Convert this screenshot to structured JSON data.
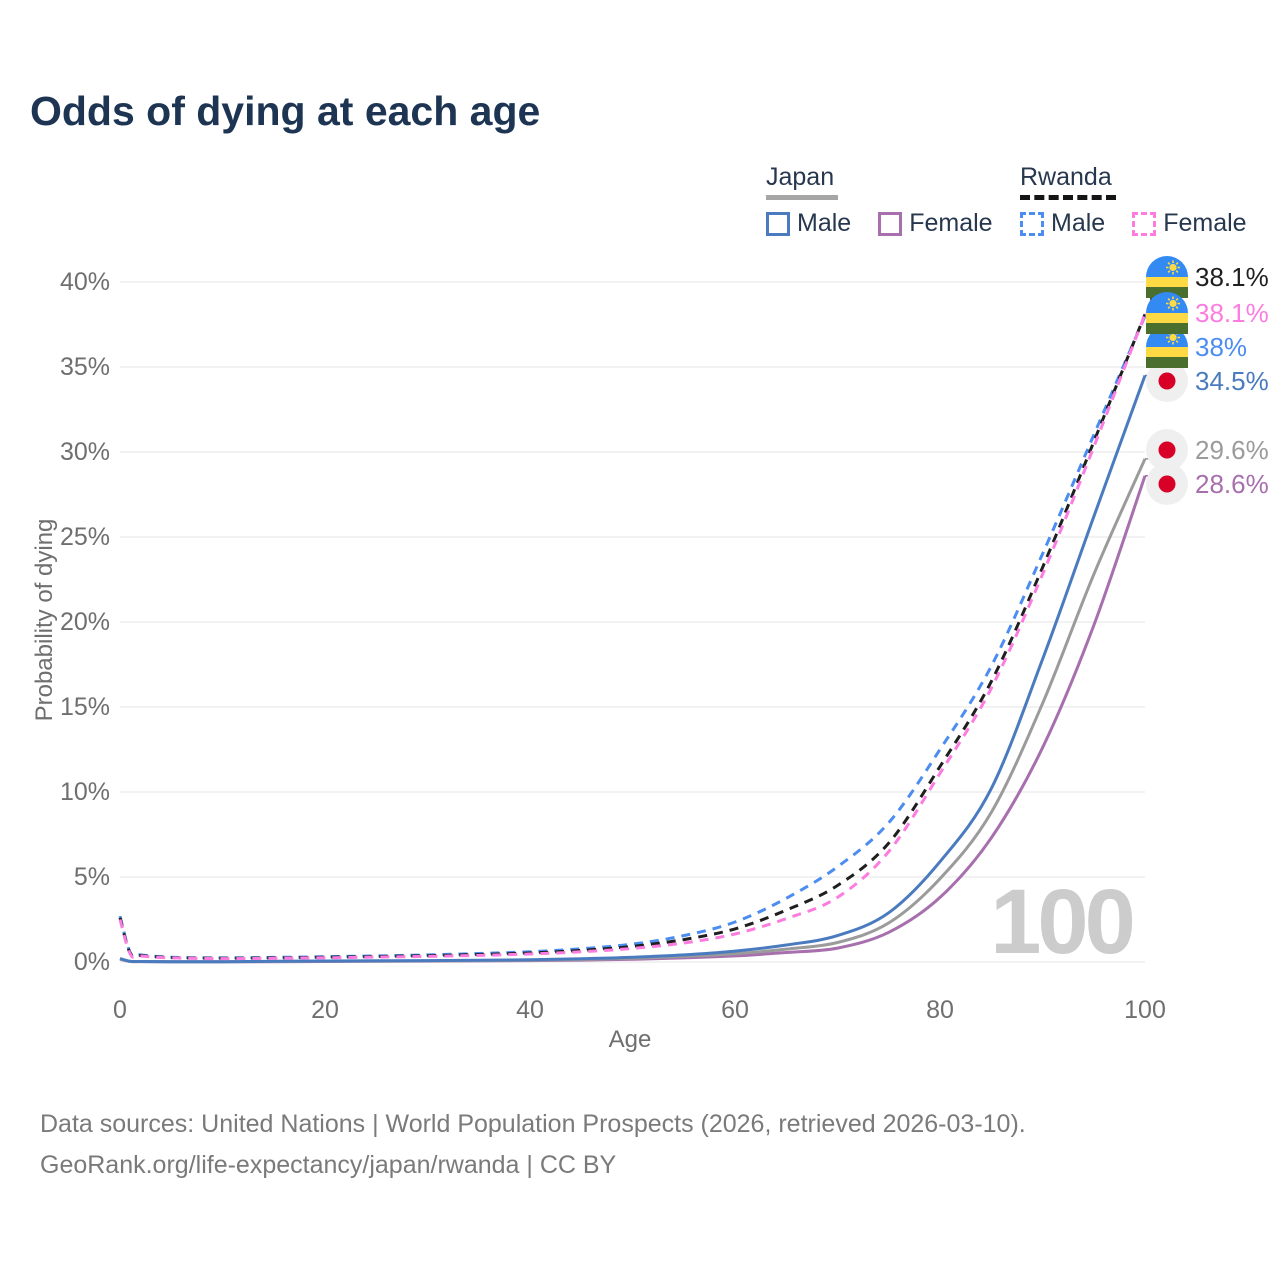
{
  "title": "Odds of dying at each age",
  "legend": {
    "groups": [
      {
        "country": "Japan",
        "line_style": "solid",
        "underline_color": "#a6a6a6",
        "items": [
          {
            "label": "Male",
            "color": "#4a7bbf"
          },
          {
            "label": "Female",
            "color": "#a76fad"
          }
        ]
      },
      {
        "country": "Rwanda",
        "line_style": "dashed",
        "underline_color": "#151515",
        "items": [
          {
            "label": "Male",
            "color": "#4b8df0"
          },
          {
            "label": "Female",
            "color": "#fc7ce0"
          }
        ]
      }
    ]
  },
  "axes": {
    "x": {
      "label": "Age",
      "ticks": [
        "0",
        "20",
        "40",
        "60",
        "80",
        "100"
      ],
      "tick_values": [
        0,
        20,
        40,
        60,
        80,
        100
      ]
    },
    "y": {
      "label": "Probability of dying",
      "ticks": [
        "0%",
        "5%",
        "10%",
        "15%",
        "20%",
        "25%",
        "30%",
        "35%",
        "40%"
      ],
      "tick_values": [
        0,
        5,
        10,
        15,
        20,
        25,
        30,
        35,
        40
      ]
    }
  },
  "watermark": "100",
  "chart_data": {
    "type": "line",
    "title": "Odds of dying at each age",
    "xlabel": "Age",
    "ylabel": "Probability of dying",
    "xlim": [
      0,
      100
    ],
    "ylim": [
      0,
      40
    ],
    "y_unit": "percent",
    "grid": "horizontal",
    "legend_position": "top-right",
    "ages": [
      0,
      1,
      2,
      5,
      10,
      15,
      20,
      25,
      30,
      35,
      40,
      45,
      50,
      55,
      60,
      65,
      70,
      75,
      80,
      85,
      90,
      95,
      100
    ],
    "series": [
      {
        "id": "japan-female",
        "name": "Japan Female",
        "flag": "japan",
        "color": "#a76fad",
        "dash": false,
        "end_label": "28.6%",
        "values": [
          0.17,
          0.03,
          0.024,
          0.015,
          0.013,
          0.02,
          0.03,
          0.04,
          0.05,
          0.065,
          0.08,
          0.11,
          0.16,
          0.24,
          0.36,
          0.56,
          0.82,
          1.75,
          3.8,
          7.3,
          12.6,
          19.8,
          28.6
        ]
      },
      {
        "id": "japan-both",
        "name": "Japan Both sexes",
        "flag": "japan",
        "color": "#9b9b9b",
        "dash": false,
        "end_label": "29.6%",
        "values": [
          0.18,
          0.035,
          0.027,
          0.018,
          0.016,
          0.03,
          0.045,
          0.055,
          0.065,
          0.08,
          0.1,
          0.15,
          0.22,
          0.33,
          0.49,
          0.76,
          1.15,
          2.3,
          4.9,
          8.8,
          15.2,
          22.8,
          29.6
        ]
      },
      {
        "id": "japan-male",
        "name": "Japan Male",
        "flag": "japan",
        "color": "#4a7bbf",
        "dash": false,
        "end_label": "34.5%",
        "values": [
          0.2,
          0.04,
          0.03,
          0.02,
          0.02,
          0.04,
          0.06,
          0.07,
          0.08,
          0.1,
          0.13,
          0.19,
          0.28,
          0.42,
          0.64,
          1.0,
          1.55,
          2.9,
          5.9,
          10.2,
          17.8,
          26.2,
          34.5
        ]
      },
      {
        "id": "rwanda-male",
        "name": "Rwanda Male",
        "flag": "rwanda",
        "color": "#4b8df0",
        "dash": true,
        "end_label": "38%",
        "values": [
          2.7,
          0.55,
          0.42,
          0.28,
          0.24,
          0.27,
          0.31,
          0.36,
          0.42,
          0.5,
          0.6,
          0.78,
          1.05,
          1.55,
          2.35,
          3.75,
          5.6,
          8.2,
          12.5,
          17.4,
          24.0,
          31.0,
          38.0
        ]
      },
      {
        "id": "rwanda-both",
        "name": "Rwanda Both sexes",
        "flag": "rwanda",
        "color": "#1f1f1f",
        "dash": true,
        "end_label": "38.1%",
        "values": [
          2.6,
          0.5,
          0.38,
          0.26,
          0.22,
          0.24,
          0.28,
          0.32,
          0.37,
          0.44,
          0.53,
          0.68,
          0.92,
          1.32,
          1.95,
          3.05,
          4.5,
          7.0,
          11.5,
          16.5,
          23.2,
          30.6,
          38.1
        ]
      },
      {
        "id": "rwanda-female",
        "name": "Rwanda Female",
        "flag": "rwanda",
        "color": "#fc7ce0",
        "dash": true,
        "end_label": "38.1%",
        "values": [
          2.5,
          0.46,
          0.35,
          0.24,
          0.2,
          0.22,
          0.25,
          0.29,
          0.33,
          0.39,
          0.47,
          0.6,
          0.8,
          1.12,
          1.65,
          2.55,
          3.8,
          6.5,
          11.1,
          16.1,
          22.8,
          30.3,
          38.1
        ]
      }
    ]
  },
  "footer": {
    "line1": "Data sources: United Nations | World Population Prospects (2026, retrieved 2026-03-10).",
    "line2": "GeoRank.org/life-expectancy/japan/rwanda | CC BY"
  }
}
